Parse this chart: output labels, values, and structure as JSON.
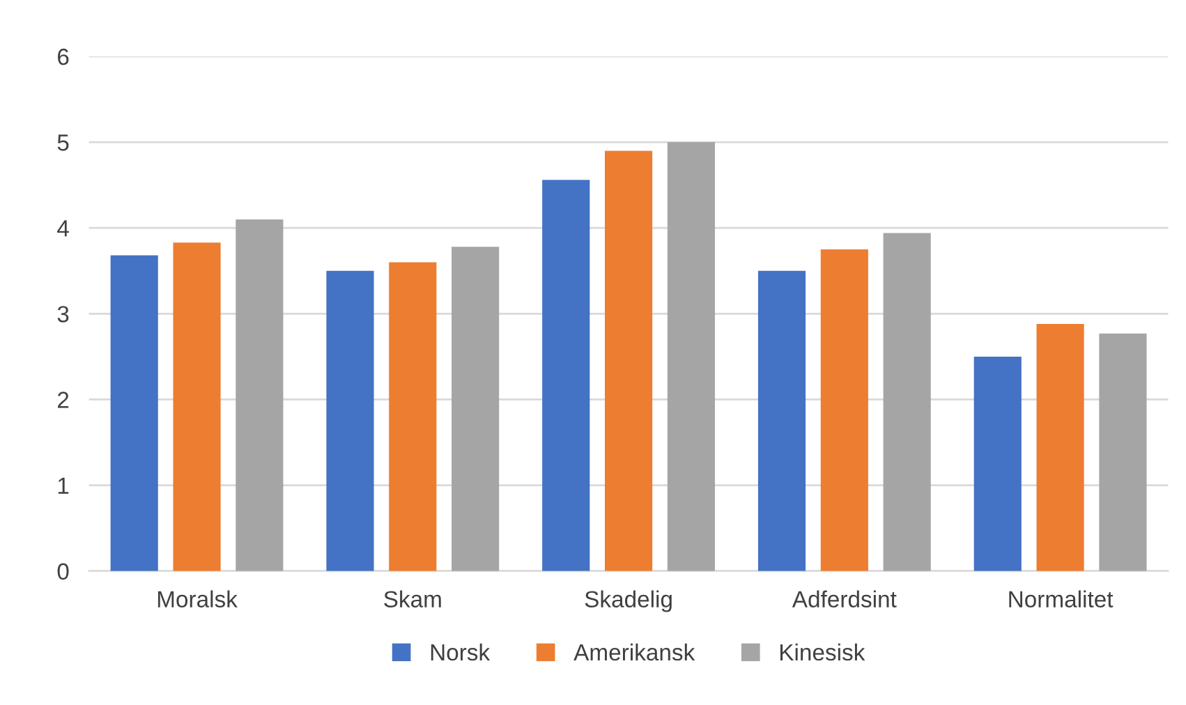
{
  "chart_data": {
    "type": "bar",
    "categories": [
      "Moralsk",
      "Skam",
      "Skadelig",
      "Adferdsint",
      "Normalitet"
    ],
    "series": [
      {
        "name": "Norsk",
        "color": "#4472c4",
        "values": [
          3.68,
          3.5,
          4.56,
          3.5,
          2.5
        ]
      },
      {
        "name": "Amerikansk",
        "color": "#ed7d31",
        "values": [
          3.83,
          3.6,
          4.9,
          3.75,
          2.88
        ]
      },
      {
        "name": "Kinesisk",
        "color": "#a5a5a5",
        "values": [
          4.1,
          3.78,
          5.0,
          3.94,
          2.77
        ]
      }
    ],
    "ylim": [
      0,
      6
    ],
    "yticks": [
      0,
      1,
      2,
      3,
      4,
      5,
      6
    ],
    "grid": "y",
    "legend": "bottom"
  }
}
